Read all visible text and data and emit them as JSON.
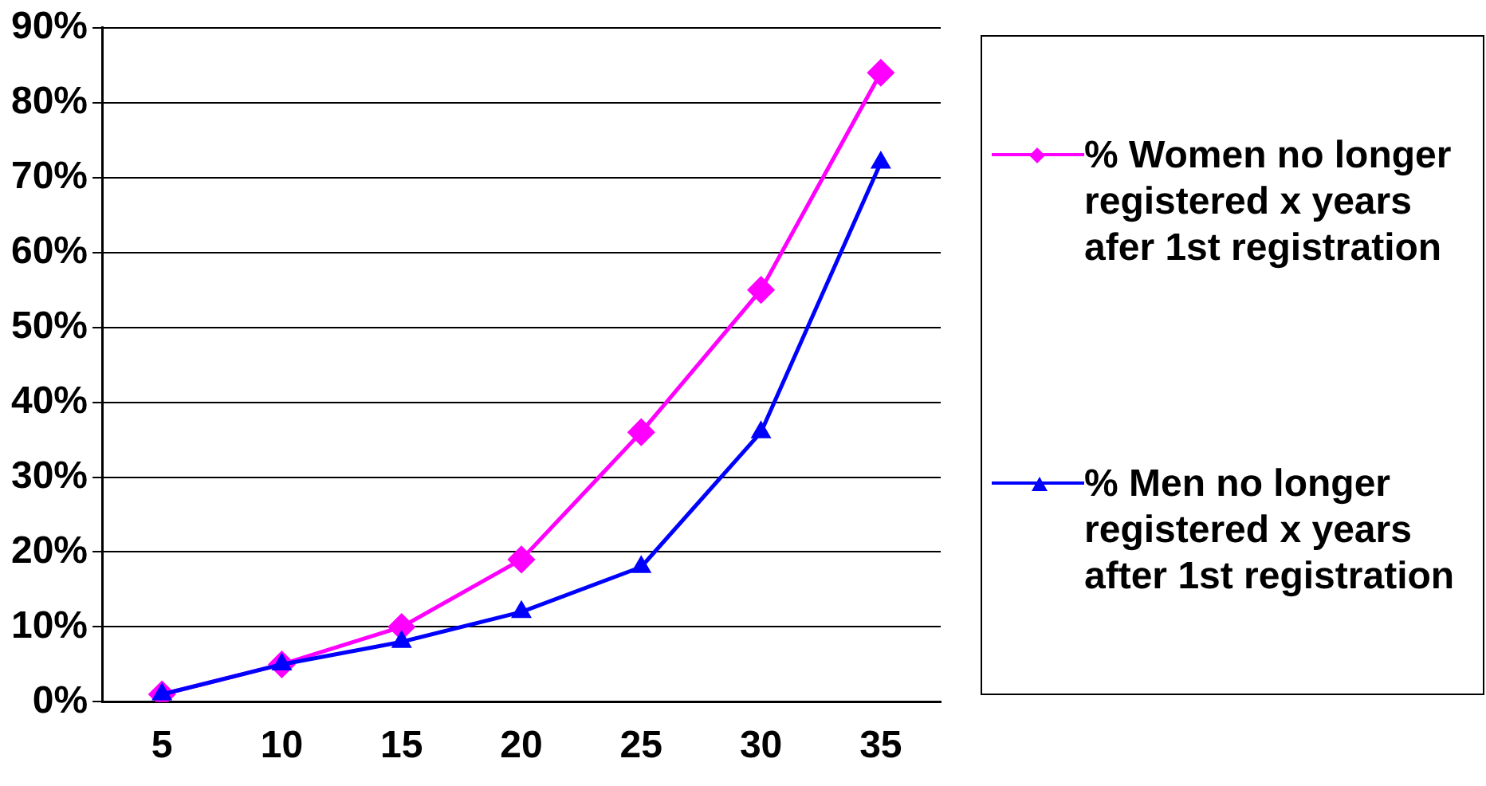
{
  "chart_data": {
    "type": "line",
    "categories": [
      "5",
      "10",
      "15",
      "20",
      "25",
      "30",
      "35"
    ],
    "series": [
      {
        "name": "% Women no longer registered x years afer 1st registration",
        "color": "#ff00ff",
        "marker": "diamond",
        "values": [
          1,
          5,
          10,
          19,
          36,
          55,
          84
        ]
      },
      {
        "name": "% Men no longer registered x years after 1st registration",
        "color": "#0000ff",
        "marker": "triangle",
        "values": [
          1,
          5,
          8,
          12,
          18,
          36,
          72
        ]
      }
    ],
    "ylim": [
      0,
      90
    ],
    "yticks": [
      {
        "value": 0,
        "label": "0%"
      },
      {
        "value": 10,
        "label": "10%"
      },
      {
        "value": 20,
        "label": "20%"
      },
      {
        "value": 30,
        "label": "30%"
      },
      {
        "value": 40,
        "label": "40%"
      },
      {
        "value": 50,
        "label": "50%"
      },
      {
        "value": 60,
        "label": "60%"
      },
      {
        "value": 70,
        "label": "70%"
      },
      {
        "value": 80,
        "label": "80%"
      },
      {
        "value": 90,
        "label": "90%"
      }
    ],
    "grid": "y",
    "legend": "right",
    "line_style": "solid"
  }
}
